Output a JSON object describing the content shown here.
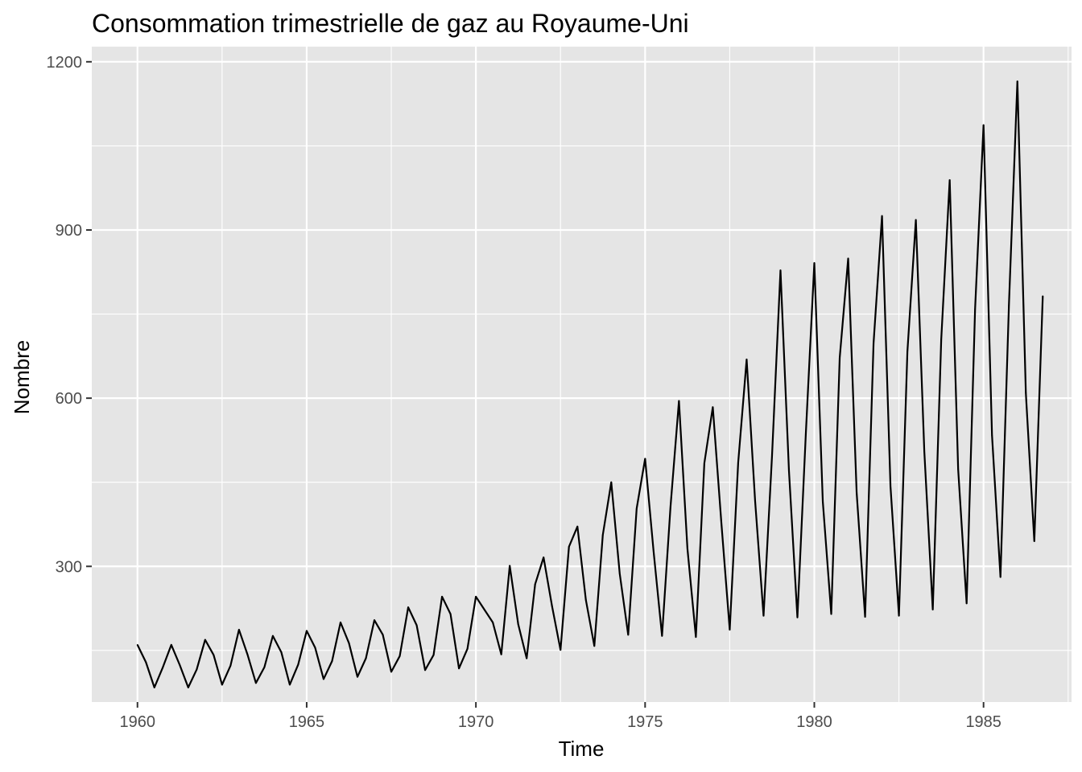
{
  "chart_data": {
    "type": "line",
    "title": "Consommation trimestrielle de gaz au Royaume-Uni",
    "xlabel": "Time",
    "ylabel": "Nombre",
    "xlim": [
      1958.65,
      1987.6
    ],
    "ylim": [
      58,
      1227
    ],
    "x_ticks": [
      1960,
      1965,
      1970,
      1975,
      1980,
      1985
    ],
    "x_tick_labels": [
      "1960",
      "1965",
      "1970",
      "1975",
      "1980",
      "1985"
    ],
    "y_ticks": [
      300,
      600,
      900,
      1200
    ],
    "y_tick_labels": [
      "300",
      "600",
      "900",
      "1200"
    ],
    "grid": true,
    "legend": "none",
    "colors": {
      "panel": "#e5e5e5",
      "grid": "#ffffff",
      "line": "#000000",
      "tick_text": "#4d4d4d"
    },
    "x_start": 1960,
    "frequency": 4,
    "series": [
      {
        "values": [
          160,
          129,
          84,
          120,
          160,
          124,
          84,
          116,
          169,
          142,
          89,
          123,
          187,
          143,
          92,
          120,
          176,
          147,
          89,
          125,
          185,
          155,
          99,
          131,
          200,
          163,
          103,
          136,
          204,
          178,
          112,
          140,
          227,
          195,
          115,
          142,
          246,
          215,
          118,
          153,
          246,
          223,
          200,
          143,
          301,
          197,
          136,
          268,
          316,
          229,
          151,
          335,
          371,
          240,
          158,
          356,
          450,
          287,
          178,
          403,
          492,
          327,
          176,
          406,
          595,
          332,
          174,
          484,
          584,
          380,
          187,
          485,
          669,
          417,
          212,
          497,
          828,
          471,
          209,
          538,
          841,
          416,
          215,
          672,
          849,
          432,
          210,
          698,
          925,
          443,
          212,
          683,
          918,
          505,
          223,
          705,
          989,
          473,
          234,
          759,
          1087,
          534,
          281,
          766,
          1165,
          609,
          345,
          782
        ]
      }
    ]
  }
}
